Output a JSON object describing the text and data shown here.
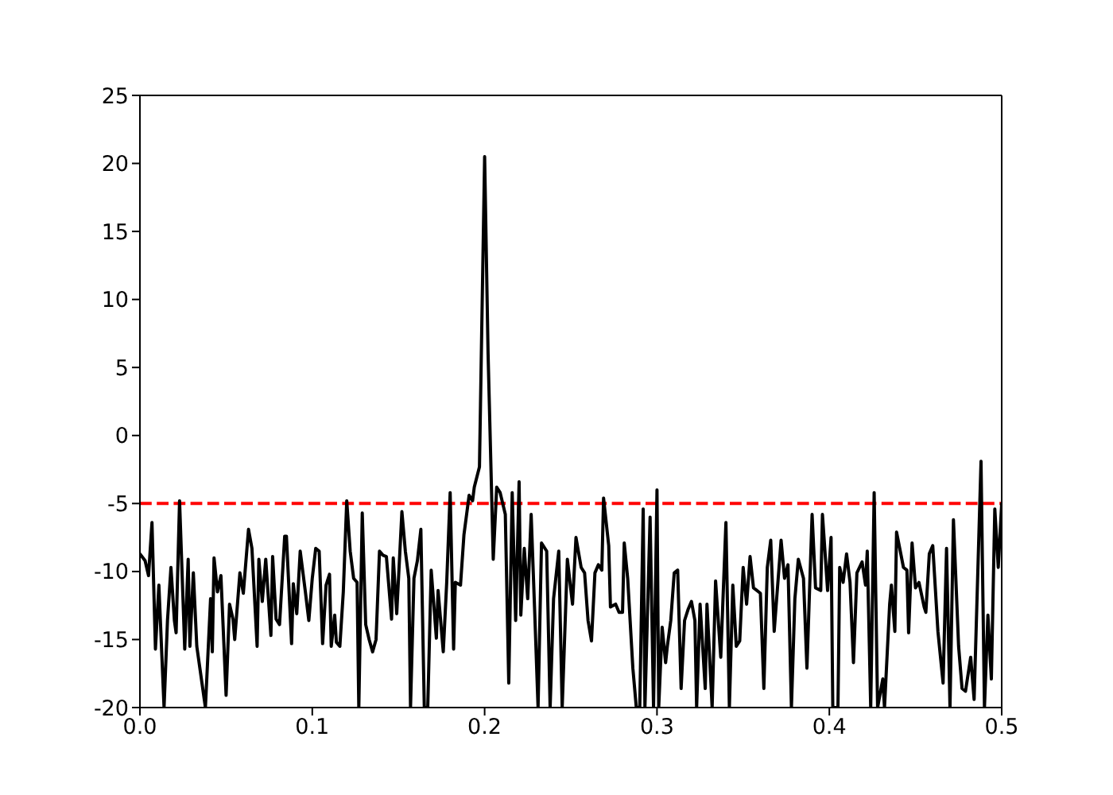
{
  "chart_data": {
    "type": "line",
    "x": [
      0,
      0.003,
      0.005,
      0.007,
      0.009,
      0.011,
      0.014,
      0.016,
      0.018,
      0.02,
      0.021,
      0.023,
      0.026,
      0.028,
      0.029,
      0.031,
      0.033,
      0.036,
      0.038,
      0.041,
      0.042,
      0.043,
      0.045,
      0.047,
      0.05,
      0.052,
      0.054,
      0.055,
      0.058,
      0.06,
      0.063,
      0.065,
      0.068,
      0.069,
      0.071,
      0.073,
      0.076,
      0.077,
      0.079,
      0.081,
      0.084,
      0.085,
      0.088,
      0.089,
      0.091,
      0.093,
      0.096,
      0.098,
      0.1,
      0.102,
      0.104,
      0.106,
      0.108,
      0.11,
      0.111,
      0.113,
      0.114,
      0.116,
      0.118,
      0.12,
      0.122,
      0.124,
      0.126,
      0.127,
      0.129,
      0.131,
      0.133,
      0.135,
      0.137,
      0.139,
      0.141,
      0.143,
      0.146,
      0.147,
      0.149,
      0.152,
      0.154,
      0.156,
      0.157,
      0.159,
      0.161,
      0.163,
      0.165,
      0.167,
      0.169,
      0.172,
      0.173,
      0.176,
      0.178,
      0.18,
      0.182,
      0.183,
      0.186,
      0.188,
      0.191,
      0.193,
      0.194,
      0.197,
      0.2,
      0.202,
      0.203,
      0.205,
      0.207,
      0.209,
      0.212,
      0.214,
      0.216,
      0.218,
      0.22,
      0.221,
      0.223,
      0.225,
      0.227,
      0.229,
      0.231,
      0.233,
      0.236,
      0.238,
      0.24,
      0.243,
      0.245,
      0.248,
      0.251,
      0.253,
      0.256,
      0.258,
      0.26,
      0.262,
      0.264,
      0.266,
      0.268,
      0.269,
      0.272,
      0.273,
      0.276,
      0.278,
      0.28,
      0.281,
      0.283,
      0.286,
      0.288,
      0.29,
      0.292,
      0.293,
      0.296,
      0.298,
      0.3,
      0.301,
      0.303,
      0.305,
      0.306,
      0.308,
      0.31,
      0.312,
      0.314,
      0.316,
      0.318,
      0.32,
      0.322,
      0.323,
      0.325,
      0.328,
      0.329,
      0.332,
      0.334,
      0.337,
      0.34,
      0.342,
      0.344,
      0.346,
      0.348,
      0.35,
      0.352,
      0.354,
      0.356,
      0.36,
      0.362,
      0.364,
      0.366,
      0.368,
      0.372,
      0.374,
      0.376,
      0.378,
      0.38,
      0.382,
      0.385,
      0.387,
      0.39,
      0.392,
      0.395,
      0.396,
      0.399,
      0.401,
      0.402,
      0.405,
      0.406,
      0.408,
      0.41,
      0.412,
      0.414,
      0.416,
      0.419,
      0.421,
      0.422,
      0.424,
      0.426,
      0.428,
      0.431,
      0.432,
      0.435,
      0.436,
      0.438,
      0.439,
      0.443,
      0.445,
      0.446,
      0.448,
      0.45,
      0.452,
      0.455,
      0.456,
      0.458,
      0.46,
      0.463,
      0.466,
      0.468,
      0.47,
      0.472,
      0.475,
      0.477,
      0.479,
      0.482,
      0.484,
      0.488,
      0.49,
      0.492,
      0.494,
      0.496,
      0.498,
      0.5
    ],
    "values": [
      -8.7,
      -9.2,
      -10.3,
      -6.4,
      -15.7,
      -11,
      -20,
      -13.6,
      -9.7,
      -13.6,
      -14.5,
      -4.8,
      -15.7,
      -9.1,
      -15.5,
      -10.1,
      -15.5,
      -18.2,
      -20,
      -12,
      -15.9,
      -9,
      -11.5,
      -10.3,
      -19.1,
      -12.4,
      -13.5,
      -15,
      -10.1,
      -11.6,
      -6.9,
      -8.3,
      -15.5,
      -9.1,
      -12.2,
      -9.1,
      -14.7,
      -8.9,
      -13.5,
      -13.9,
      -7.4,
      -7.4,
      -15.3,
      -10.9,
      -13.1,
      -8.5,
      -11.5,
      -13.6,
      -10.5,
      -8.3,
      -8.5,
      -15.3,
      -11,
      -10.2,
      -15.5,
      -13.2,
      -15.2,
      -15.5,
      -11.5,
      -4.8,
      -8.5,
      -10.5,
      -10.8,
      -20,
      -5.7,
      -13.9,
      -15,
      -15.9,
      -15,
      -8.5,
      -8.8,
      -8.9,
      -13.5,
      -9,
      -13.1,
      -5.6,
      -8.5,
      -10.5,
      -20,
      -10.5,
      -9.2,
      -6.9,
      -20,
      -20,
      -9.9,
      -14.9,
      -11.4,
      -15.9,
      -10.8,
      -4.2,
      -15.7,
      -10.8,
      -11,
      -7.3,
      -4.4,
      -4.8,
      -3.8,
      -2.3,
      20.5,
      6,
      1,
      -9.1,
      -3.8,
      -4.2,
      -5.8,
      -18.2,
      -4.2,
      -13.6,
      -3.4,
      -13.2,
      -8.3,
      -12,
      -5.8,
      -12.8,
      -20,
      -7.9,
      -8.5,
      -20,
      -12,
      -8.5,
      -20,
      -9.1,
      -12.4,
      -7.5,
      -9.7,
      -10.1,
      -13.6,
      -15.1,
      -10.1,
      -9.5,
      -9.9,
      -4.6,
      -8.1,
      -12.6,
      -12.4,
      -13,
      -13,
      -7.9,
      -10.5,
      -17.1,
      -20,
      -20,
      -5.4,
      -20,
      -6,
      -20,
      -4,
      -20,
      -14.1,
      -16.7,
      -15.5,
      -13.6,
      -10.1,
      -9.9,
      -18.6,
      -13.6,
      -12.8,
      -12.2,
      -13.6,
      -20,
      -12.4,
      -18.6,
      -12.4,
      -20,
      -10.7,
      -16.3,
      -6.4,
      -20,
      -11,
      -15.5,
      -15.1,
      -9.7,
      -12.4,
      -8.9,
      -11.2,
      -11.6,
      -18.6,
      -9.7,
      -7.7,
      -14.4,
      -7.7,
      -10.5,
      -9.5,
      -20,
      -12,
      -9.1,
      -10.5,
      -17.1,
      -5.8,
      -11.2,
      -11.4,
      -5.8,
      -11.4,
      -7.5,
      -20,
      -20,
      -9.7,
      -10.8,
      -8.7,
      -10.8,
      -16.7,
      -10.1,
      -9.3,
      -11,
      -8.5,
      -20,
      -4.2,
      -20,
      -17.9,
      -20,
      -12.4,
      -11,
      -14.4,
      -7.1,
      -9.7,
      -9.9,
      -14.5,
      -7.9,
      -11.2,
      -10.8,
      -12.6,
      -13,
      -8.7,
      -8.1,
      -14.4,
      -18.2,
      -8.3,
      -20,
      -6.2,
      -15.5,
      -18.6,
      -18.8,
      -16.3,
      -19.4,
      -1.9,
      -20,
      -13.2,
      -17.9,
      -5.4,
      -9.7,
      -5
    ],
    "color": "#000000",
    "xlim": [
      0,
      0.5
    ],
    "xticks": [
      {
        "value": 0,
        "label": "0.0"
      },
      0.1,
      0.2,
      0.3,
      0.4,
      0.5
    ],
    "ylim": [
      -20,
      25
    ],
    "yticks": [
      -20,
      -15,
      -10,
      -5,
      0,
      5,
      10,
      15,
      20,
      25
    ],
    "ref_lines": [
      {
        "axis": "y",
        "value": -5,
        "color": "#ff0000",
        "line_style": "dashed"
      }
    ]
  }
}
